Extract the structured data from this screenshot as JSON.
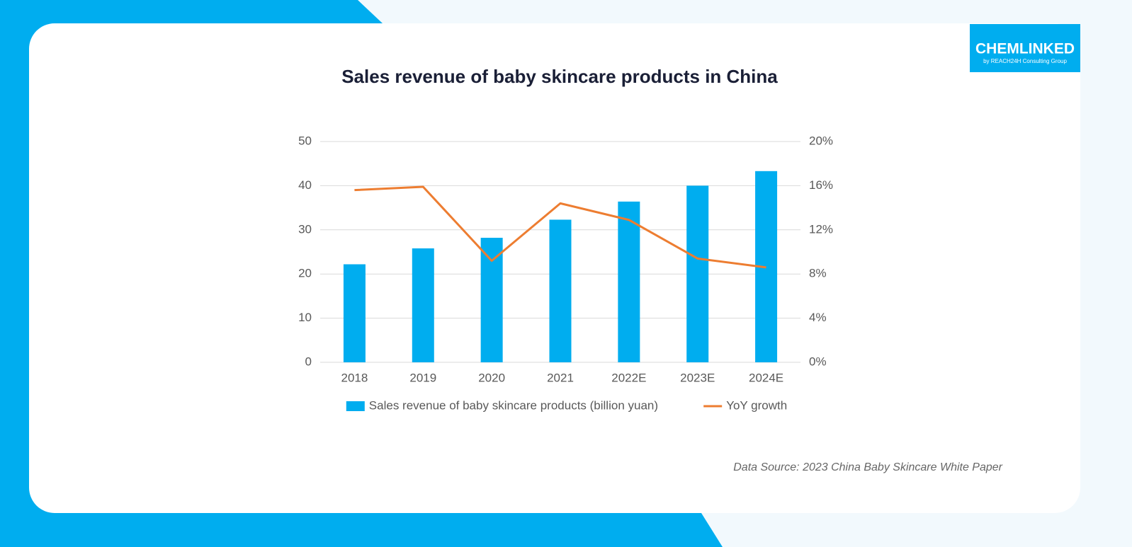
{
  "logo": {
    "name": "CHEMLINKED",
    "tagline": "by REACH24H Consulting Group"
  },
  "source": "Data Source: 2023 China Baby Skincare White Paper",
  "chart_data": {
    "type": "bar",
    "title": "Sales revenue of baby skincare products in China",
    "categories": [
      "2018",
      "2019",
      "2020",
      "2021",
      "2022E",
      "2023E",
      "2024E"
    ],
    "series": [
      {
        "name": "Sales revenue of baby skincare products (billion yuan)",
        "type": "bar",
        "color": "#00adef",
        "values": [
          22.2,
          25.8,
          28.2,
          32.3,
          36.4,
          40.0,
          43.3
        ]
      },
      {
        "name": "YoY growth",
        "type": "line",
        "axis": "y2",
        "color": "#ed7d31",
        "values": [
          15.6,
          15.9,
          9.2,
          14.4,
          12.9,
          9.4,
          8.6
        ]
      }
    ],
    "ylim": [
      0,
      50
    ],
    "yticks": [
      0,
      10,
      20,
      30,
      40,
      50
    ],
    "y2lim": [
      0,
      20
    ],
    "y2ticks": [
      {
        "value": 0,
        "label": "0%"
      },
      {
        "value": 4,
        "label": "4%"
      },
      {
        "value": 8,
        "label": "8%"
      },
      {
        "value": 12,
        "label": "12%"
      },
      {
        "value": 16,
        "label": "16%"
      },
      {
        "value": 20,
        "label": "20%"
      }
    ],
    "grid": true,
    "legend": "bottom"
  }
}
